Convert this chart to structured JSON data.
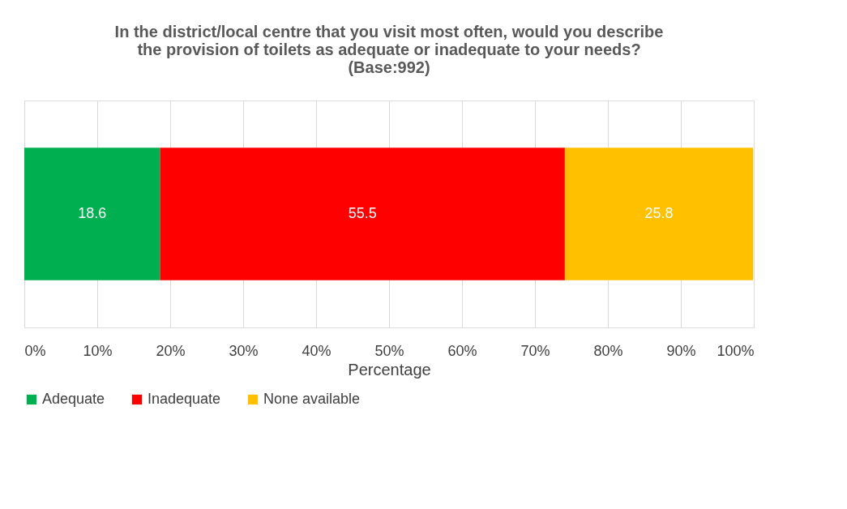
{
  "chart_data": {
    "type": "bar",
    "orientation": "horizontal",
    "stacked": true,
    "title": [
      "In the district/local centre that you visit most often, would you describe",
      "the provision of toilets as adequate or inadequate to your needs?",
      "(Base:992)"
    ],
    "xlabel": "Percentage",
    "categories": [
      null
    ],
    "series": [
      {
        "name": "Adequate",
        "color": "#00b050",
        "values": [
          18.6
        ]
      },
      {
        "name": "Inadequate",
        "color": "#ff0000",
        "values": [
          55.5
        ]
      },
      {
        "name": "None available",
        "color": "#ffc000",
        "values": [
          25.8
        ]
      }
    ],
    "xlim": [
      0,
      100
    ],
    "xticks": [
      {
        "value": 0,
        "label": "0%"
      },
      {
        "value": 10,
        "label": "10%"
      },
      {
        "value": 20,
        "label": "20%"
      },
      {
        "value": 30,
        "label": "30%"
      },
      {
        "value": 40,
        "label": "40%"
      },
      {
        "value": 50,
        "label": "50%"
      },
      {
        "value": 60,
        "label": "60%"
      },
      {
        "value": 70,
        "label": "70%"
      },
      {
        "value": 80,
        "label": "80%"
      },
      {
        "value": 90,
        "label": "90%"
      },
      {
        "value": 100,
        "label": "100%"
      }
    ],
    "grid": "x",
    "legend": "bottom",
    "data_labels": true
  }
}
